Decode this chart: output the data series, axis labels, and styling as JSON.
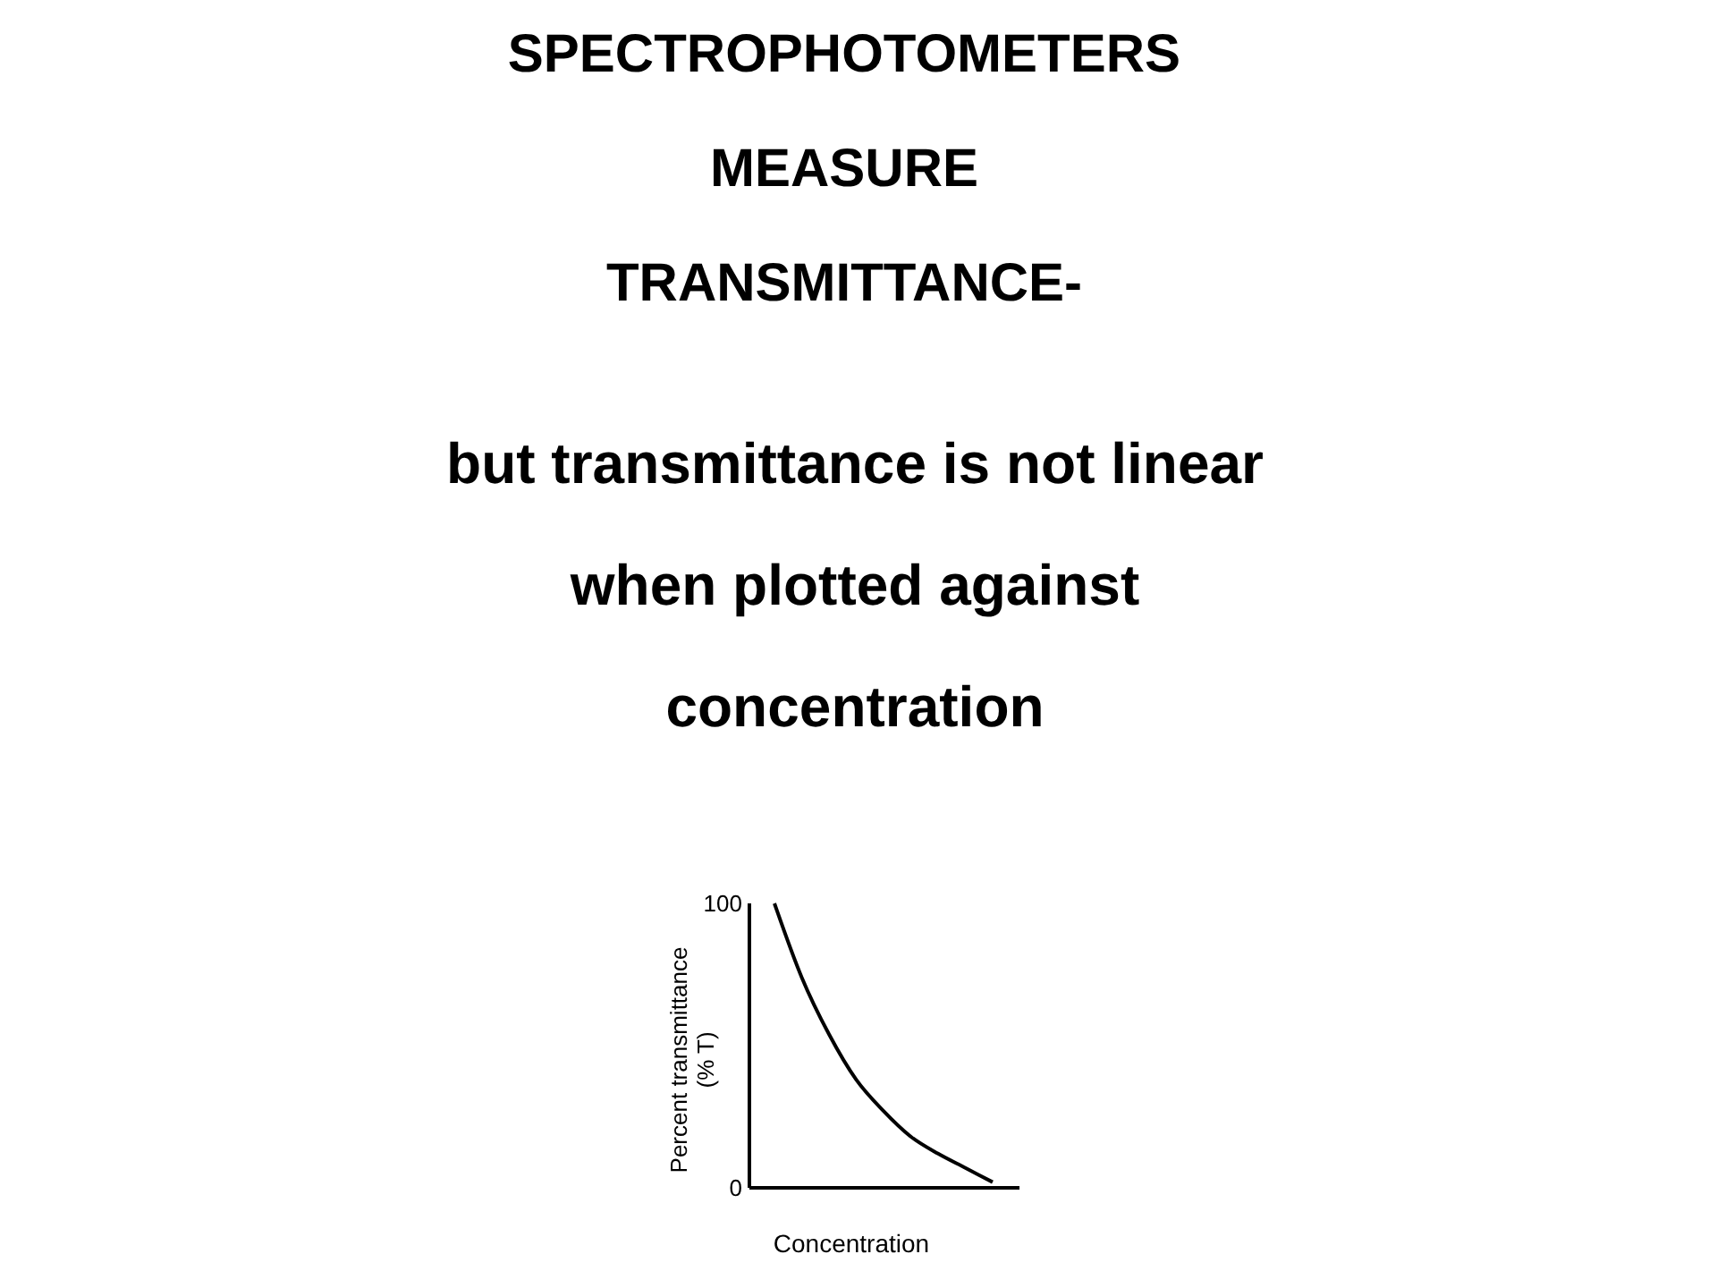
{
  "chart_data": {
    "type": "line",
    "title": "SPECTROPHOTOMETERS MEASURE TRANSMITTANCE-",
    "subtitle": "but transmittance is not linear when plotted against concentration",
    "xlabel": "Concentration",
    "ylabel": "Percent transmittance (% T)",
    "categories": [
      null,
      null,
      null,
      null,
      null,
      null,
      null,
      null,
      null
    ],
    "series": [
      {
        "color": "#000000",
        "values": [
          100,
          74,
          54,
          38,
          27,
          18,
          12,
          7,
          2
        ]
      }
    ],
    "ylim": [
      0,
      100
    ],
    "yticks": [
      0,
      100
    ],
    "grid": false,
    "marker": "none",
    "line_style": "solid"
  }
}
